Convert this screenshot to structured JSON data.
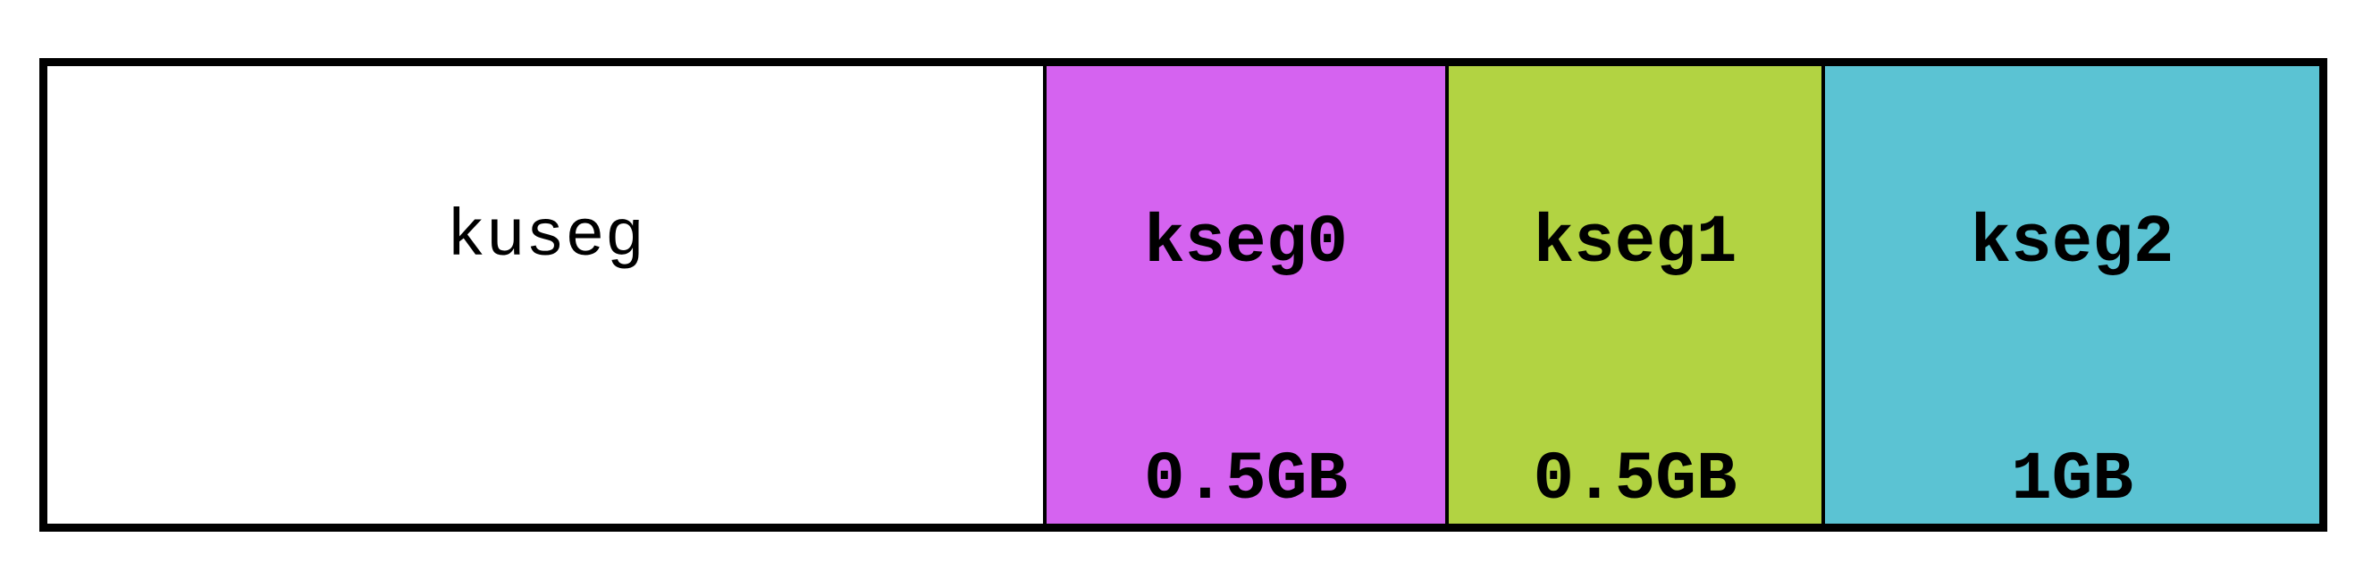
{
  "segments": [
    {
      "name": "kuseg",
      "size": "",
      "color": "#ffffff"
    },
    {
      "name": "kseg0",
      "size": "0.5GB",
      "color": "#d563f0"
    },
    {
      "name": "kseg1",
      "size": "0.5GB",
      "color": "#b2d342"
    },
    {
      "name": "kseg2",
      "size": "1GB",
      "color": "#5bc3d3"
    }
  ]
}
